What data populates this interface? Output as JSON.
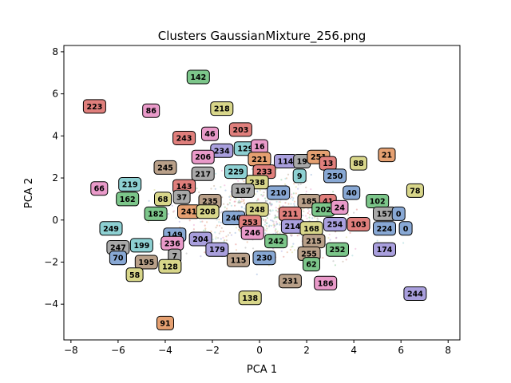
{
  "chart_data": {
    "type": "scatter",
    "title": "Clusters GaussianMixture_256.png",
    "xlabel": "PCA 1",
    "ylabel": "PCA 2",
    "xlim": [
      -8.3,
      8.5
    ],
    "ylim": [
      -5.7,
      8.3
    ],
    "xticks": [
      -8,
      -6,
      -4,
      -2,
      0,
      2,
      4,
      6,
      8
    ],
    "yticks": [
      -4,
      -2,
      0,
      2,
      4,
      6,
      8
    ],
    "grid": false,
    "background_points": "faint multicolored points, mostly within x -7..8, y -4..4",
    "palette": [
      "#88a8d4",
      "#7cc68a",
      "#e07f7c",
      "#a99fdd",
      "#b9a089",
      "#e99ac9",
      "#a8a8a8",
      "#d8d68a",
      "#8dd0d2",
      "#e5a071"
    ],
    "cluster_labels": [
      {
        "label": "142",
        "x": -2.6,
        "y": 6.8,
        "color": "#7cc68a"
      },
      {
        "label": "223",
        "x": -7.0,
        "y": 5.4,
        "color": "#e07f7c"
      },
      {
        "label": "86",
        "x": -4.6,
        "y": 5.2,
        "color": "#e99ac9"
      },
      {
        "label": "218",
        "x": -1.6,
        "y": 5.3,
        "color": "#d8d68a"
      },
      {
        "label": "203",
        "x": -0.8,
        "y": 4.3,
        "color": "#e07f7c"
      },
      {
        "label": "46",
        "x": -2.1,
        "y": 4.1,
        "color": "#e99ac9"
      },
      {
        "label": "243",
        "x": -3.2,
        "y": 3.9,
        "color": "#e07f7c"
      },
      {
        "label": "129",
        "x": -0.6,
        "y": 3.4,
        "color": "#8dd0d2"
      },
      {
        "label": "234",
        "x": -1.6,
        "y": 3.3,
        "color": "#a99fdd"
      },
      {
        "label": "206",
        "x": -2.4,
        "y": 3.0,
        "color": "#e99ac9"
      },
      {
        "label": "16",
        "x": 0.0,
        "y": 3.5,
        "color": "#e99ac9"
      },
      {
        "label": "221",
        "x": 0.0,
        "y": 2.9,
        "color": "#e5a071"
      },
      {
        "label": "114",
        "x": 1.1,
        "y": 2.8,
        "color": "#a99fdd"
      },
      {
        "label": "19",
        "x": 1.8,
        "y": 2.8,
        "color": "#a8a8a8"
      },
      {
        "label": "251",
        "x": 2.5,
        "y": 3.0,
        "color": "#e5a071"
      },
      {
        "label": "13",
        "x": 2.9,
        "y": 2.7,
        "color": "#e07f7c"
      },
      {
        "label": "88",
        "x": 4.2,
        "y": 2.7,
        "color": "#d8d68a"
      },
      {
        "label": "21",
        "x": 5.4,
        "y": 3.1,
        "color": "#e5a071"
      },
      {
        "label": "245",
        "x": -4.0,
        "y": 2.5,
        "color": "#b9a089"
      },
      {
        "label": "217",
        "x": -2.4,
        "y": 2.2,
        "color": "#a8a8a8"
      },
      {
        "label": "229",
        "x": -1.0,
        "y": 2.3,
        "color": "#8dd0d2"
      },
      {
        "label": "233",
        "x": 0.2,
        "y": 2.3,
        "color": "#e07f7c"
      },
      {
        "label": "9",
        "x": 1.7,
        "y": 2.1,
        "color": "#8dd0d2"
      },
      {
        "label": "250",
        "x": 3.2,
        "y": 2.1,
        "color": "#88a8d4"
      },
      {
        "label": "66",
        "x": -6.8,
        "y": 1.5,
        "color": "#e99ac9"
      },
      {
        "label": "219",
        "x": -5.5,
        "y": 1.7,
        "color": "#8dd0d2"
      },
      {
        "label": "143",
        "x": -3.2,
        "y": 1.6,
        "color": "#e07f7c"
      },
      {
        "label": "238",
        "x": -0.1,
        "y": 1.8,
        "color": "#d8d68a"
      },
      {
        "label": "187",
        "x": -0.7,
        "y": 1.4,
        "color": "#a8a8a8"
      },
      {
        "label": "210",
        "x": 0.8,
        "y": 1.3,
        "color": "#88a8d4"
      },
      {
        "label": "40",
        "x": 3.9,
        "y": 1.3,
        "color": "#88a8d4"
      },
      {
        "label": "78",
        "x": 6.6,
        "y": 1.4,
        "color": "#d8d68a"
      },
      {
        "label": "162",
        "x": -5.6,
        "y": 1.0,
        "color": "#7cc68a"
      },
      {
        "label": "68",
        "x": -4.1,
        "y": 1.0,
        "color": "#d8d68a"
      },
      {
        "label": "37",
        "x": -3.3,
        "y": 1.1,
        "color": "#a8a8a8"
      },
      {
        "label": "235",
        "x": -2.1,
        "y": 0.9,
        "color": "#b9a089"
      },
      {
        "label": "185",
        "x": 2.1,
        "y": 0.9,
        "color": "#b9a089"
      },
      {
        "label": "41",
        "x": 2.9,
        "y": 0.9,
        "color": "#e07f7c"
      },
      {
        "label": "102",
        "x": 5.0,
        "y": 0.9,
        "color": "#7cc68a"
      },
      {
        "label": "202",
        "x": 2.7,
        "y": 0.5,
        "color": "#7cc68a"
      },
      {
        "label": "24",
        "x": 3.4,
        "y": 0.6,
        "color": "#e99ac9"
      },
      {
        "label": "182",
        "x": -4.4,
        "y": 0.3,
        "color": "#7cc68a"
      },
      {
        "label": "241",
        "x": -3.0,
        "y": 0.4,
        "color": "#e5a071"
      },
      {
        "label": "208",
        "x": -2.2,
        "y": 0.4,
        "color": "#d8d68a"
      },
      {
        "label": "248",
        "x": -0.1,
        "y": 0.5,
        "color": "#d8d68a"
      },
      {
        "label": "211",
        "x": 1.3,
        "y": 0.3,
        "color": "#e07f7c"
      },
      {
        "label": "157",
        "x": 5.3,
        "y": 0.3,
        "color": "#a8a8a8"
      },
      {
        "label": "0",
        "x": 5.9,
        "y": 0.3,
        "color": "#88a8d4"
      },
      {
        "label": "240",
        "x": -1.1,
        "y": 0.1,
        "color": "#88a8d4"
      },
      {
        "label": "253",
        "x": -0.4,
        "y": -0.1,
        "color": "#e07f7c"
      },
      {
        "label": "214",
        "x": 1.4,
        "y": -0.3,
        "color": "#a99fdd"
      },
      {
        "label": "168",
        "x": 2.2,
        "y": -0.4,
        "color": "#d8d68a"
      },
      {
        "label": "254",
        "x": 3.2,
        "y": -0.2,
        "color": "#a99fdd"
      },
      {
        "label": "103",
        "x": 4.2,
        "y": -0.2,
        "color": "#e07f7c"
      },
      {
        "label": "224",
        "x": 5.3,
        "y": -0.4,
        "color": "#88a8d4"
      },
      {
        "label": "0",
        "x": 6.2,
        "y": -0.4,
        "color": "#88a8d4"
      },
      {
        "label": "249",
        "x": -6.3,
        "y": -0.4,
        "color": "#8dd0d2"
      },
      {
        "label": "149",
        "x": -3.6,
        "y": -0.7,
        "color": "#88a8d4"
      },
      {
        "label": "204",
        "x": -2.5,
        "y": -0.9,
        "color": "#a99fdd"
      },
      {
        "label": "246",
        "x": -0.3,
        "y": -0.6,
        "color": "#e99ac9"
      },
      {
        "label": "242",
        "x": 0.7,
        "y": -1.0,
        "color": "#7cc68a"
      },
      {
        "label": "215",
        "x": 2.3,
        "y": -1.0,
        "color": "#b9a089"
      },
      {
        "label": "236",
        "x": -3.7,
        "y": -1.1,
        "color": "#e99ac9"
      },
      {
        "label": "247",
        "x": -6.0,
        "y": -1.3,
        "color": "#a8a8a8"
      },
      {
        "label": "199",
        "x": -5.0,
        "y": -1.2,
        "color": "#8dd0d2"
      },
      {
        "label": "179",
        "x": -1.8,
        "y": -1.4,
        "color": "#a99fdd"
      },
      {
        "label": "252",
        "x": 3.3,
        "y": -1.4,
        "color": "#7cc68a"
      },
      {
        "label": "174",
        "x": 5.3,
        "y": -1.4,
        "color": "#a99fdd"
      },
      {
        "label": "255",
        "x": 2.1,
        "y": -1.6,
        "color": "#b9a089"
      },
      {
        "label": "70",
        "x": -6.0,
        "y": -1.8,
        "color": "#88a8d4"
      },
      {
        "label": "7",
        "x": -3.6,
        "y": -1.7,
        "color": "#a8a8a8"
      },
      {
        "label": "115",
        "x": -0.9,
        "y": -1.9,
        "color": "#b9a089"
      },
      {
        "label": "230",
        "x": 0.2,
        "y": -1.8,
        "color": "#88a8d4"
      },
      {
        "label": "195",
        "x": -4.8,
        "y": -2.0,
        "color": "#b9a089"
      },
      {
        "label": "128",
        "x": -3.8,
        "y": -2.2,
        "color": "#d8d68a"
      },
      {
        "label": "62",
        "x": 2.2,
        "y": -2.1,
        "color": "#7cc68a"
      },
      {
        "label": "58",
        "x": -5.3,
        "y": -2.6,
        "color": "#d8d68a"
      },
      {
        "label": "231",
        "x": 1.3,
        "y": -2.9,
        "color": "#b9a089"
      },
      {
        "label": "186",
        "x": 2.8,
        "y": -3.0,
        "color": "#e99ac9"
      },
      {
        "label": "138",
        "x": -0.4,
        "y": -3.7,
        "color": "#d8d68a"
      },
      {
        "label": "244",
        "x": 6.6,
        "y": -3.5,
        "color": "#a99fdd"
      },
      {
        "label": "91",
        "x": -4.0,
        "y": -4.9,
        "color": "#e5a071"
      }
    ]
  }
}
